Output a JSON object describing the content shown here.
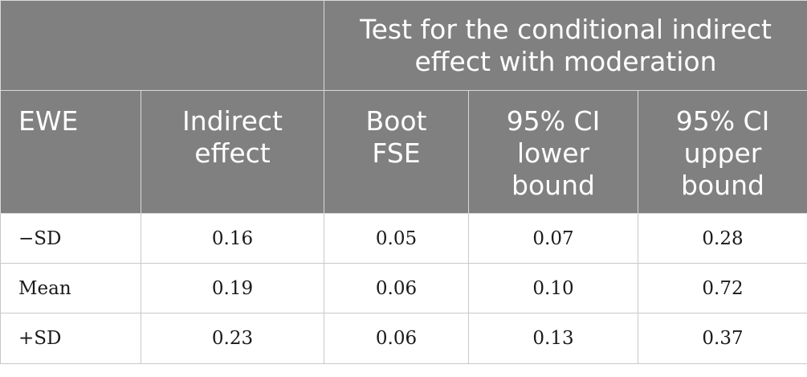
{
  "header": {
    "group_title_line1": "Test for the conditional indirect",
    "group_title_line2": "effect with moderation",
    "columns": [
      {
        "line1": "EWE",
        "line2": "",
        "line3": ""
      },
      {
        "line1": "Indirect",
        "line2": "effect",
        "line3": ""
      },
      {
        "line1": "Boot",
        "line2": "FSE",
        "line3": ""
      },
      {
        "line1": "95% CI",
        "line2": "lower",
        "line3": "bound"
      },
      {
        "line1": "95% CI",
        "line2": "upper",
        "line3": "bound"
      }
    ]
  },
  "rows": [
    {
      "label": "−SD",
      "indirect": "0.16",
      "boot_fse": "0.05",
      "ci_lower": "0.07",
      "ci_upper": "0.28"
    },
    {
      "label": "Mean",
      "indirect": "0.19",
      "boot_fse": "0.06",
      "ci_lower": "0.10",
      "ci_upper": "0.72"
    },
    {
      "label": "+SD",
      "indirect": "0.23",
      "boot_fse": "0.06",
      "ci_lower": "0.13",
      "ci_upper": "0.37"
    }
  ]
}
